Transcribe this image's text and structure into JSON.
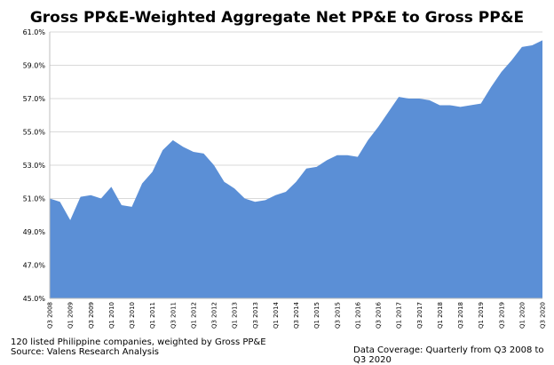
{
  "chart_data": {
    "type": "area",
    "title": "Gross PP&E-Weighted Aggregate Net PP&E to Gross PP&E",
    "xlabel": "",
    "ylabel": "",
    "ylim": [
      45.0,
      61.0
    ],
    "y_ticks": [
      "45.0%",
      "47.0%",
      "49.0%",
      "51.0%",
      "53.0%",
      "55.0%",
      "57.0%",
      "59.0%",
      "61.0%"
    ],
    "y_tick_values": [
      45,
      47,
      49,
      51,
      53,
      55,
      57,
      59,
      61
    ],
    "grid": true,
    "legend": "none",
    "series_color": "#5b8fd6",
    "x": [
      "Q3 2008",
      "Q4 2008",
      "Q1 2009",
      "Q2 2009",
      "Q3 2009",
      "Q4 2009",
      "Q1 2010",
      "Q2 2010",
      "Q3 2010",
      "Q4 2010",
      "Q1 2011",
      "Q2 2011",
      "Q3 2011",
      "Q4 2011",
      "Q1 2012",
      "Q2 2012",
      "Q3 2012",
      "Q4 2012",
      "Q1 2013",
      "Q2 2013",
      "Q3 2013",
      "Q4 2013",
      "Q1 2014",
      "Q2 2014",
      "Q3 2014",
      "Q4 2014",
      "Q1 2015",
      "Q2 2015",
      "Q3 2015",
      "Q4 2015",
      "Q1 2016",
      "Q2 2016",
      "Q3 2016",
      "Q4 2016",
      "Q1 2017",
      "Q2 2017",
      "Q3 2017",
      "Q4 2017",
      "Q1 2018",
      "Q2 2018",
      "Q3 2018",
      "Q4 2018",
      "Q1 2019",
      "Q2 2019",
      "Q3 2019",
      "Q4 2019",
      "Q1 2020",
      "Q2 2020",
      "Q3 2020"
    ],
    "x_tick_labels": [
      "Q3 2008",
      "Q1 2009",
      "Q3 2009",
      "Q1 2010",
      "Q3 2010",
      "Q1 2011",
      "Q3 2011",
      "Q1 2012",
      "Q3 2012",
      "Q1 2013",
      "Q3 2013",
      "Q1 2014",
      "Q3 2014",
      "Q1 2015",
      "Q3 2015",
      "Q1 2016",
      "Q3 2016",
      "Q1 2017",
      "Q3 2017",
      "Q1 2018",
      "Q3 2018",
      "Q1 2019",
      "Q3 2019",
      "Q1 2020",
      "Q3 2020"
    ],
    "values": [
      51.0,
      50.8,
      49.7,
      51.1,
      51.2,
      51.0,
      51.7,
      50.6,
      50.5,
      51.9,
      52.6,
      53.9,
      54.5,
      54.1,
      53.8,
      53.7,
      53.0,
      52.0,
      51.6,
      51.0,
      50.8,
      50.9,
      51.2,
      51.4,
      52.0,
      52.8,
      52.9,
      53.3,
      53.6,
      53.6,
      53.5,
      54.5,
      55.3,
      56.2,
      57.1,
      57.0,
      57.0,
      56.9,
      56.6,
      56.6,
      56.5,
      56.6,
      56.7,
      57.7,
      58.6,
      59.3,
      60.1,
      60.2,
      60.5
    ]
  },
  "footnotes": {
    "line1": "120  listed Philippine companies, weighted by Gross PP&E",
    "line2": "Source: Valens Research Analysis",
    "coverage": "Data Coverage: Quarterly from Q3 2008  to Q3 2020"
  }
}
